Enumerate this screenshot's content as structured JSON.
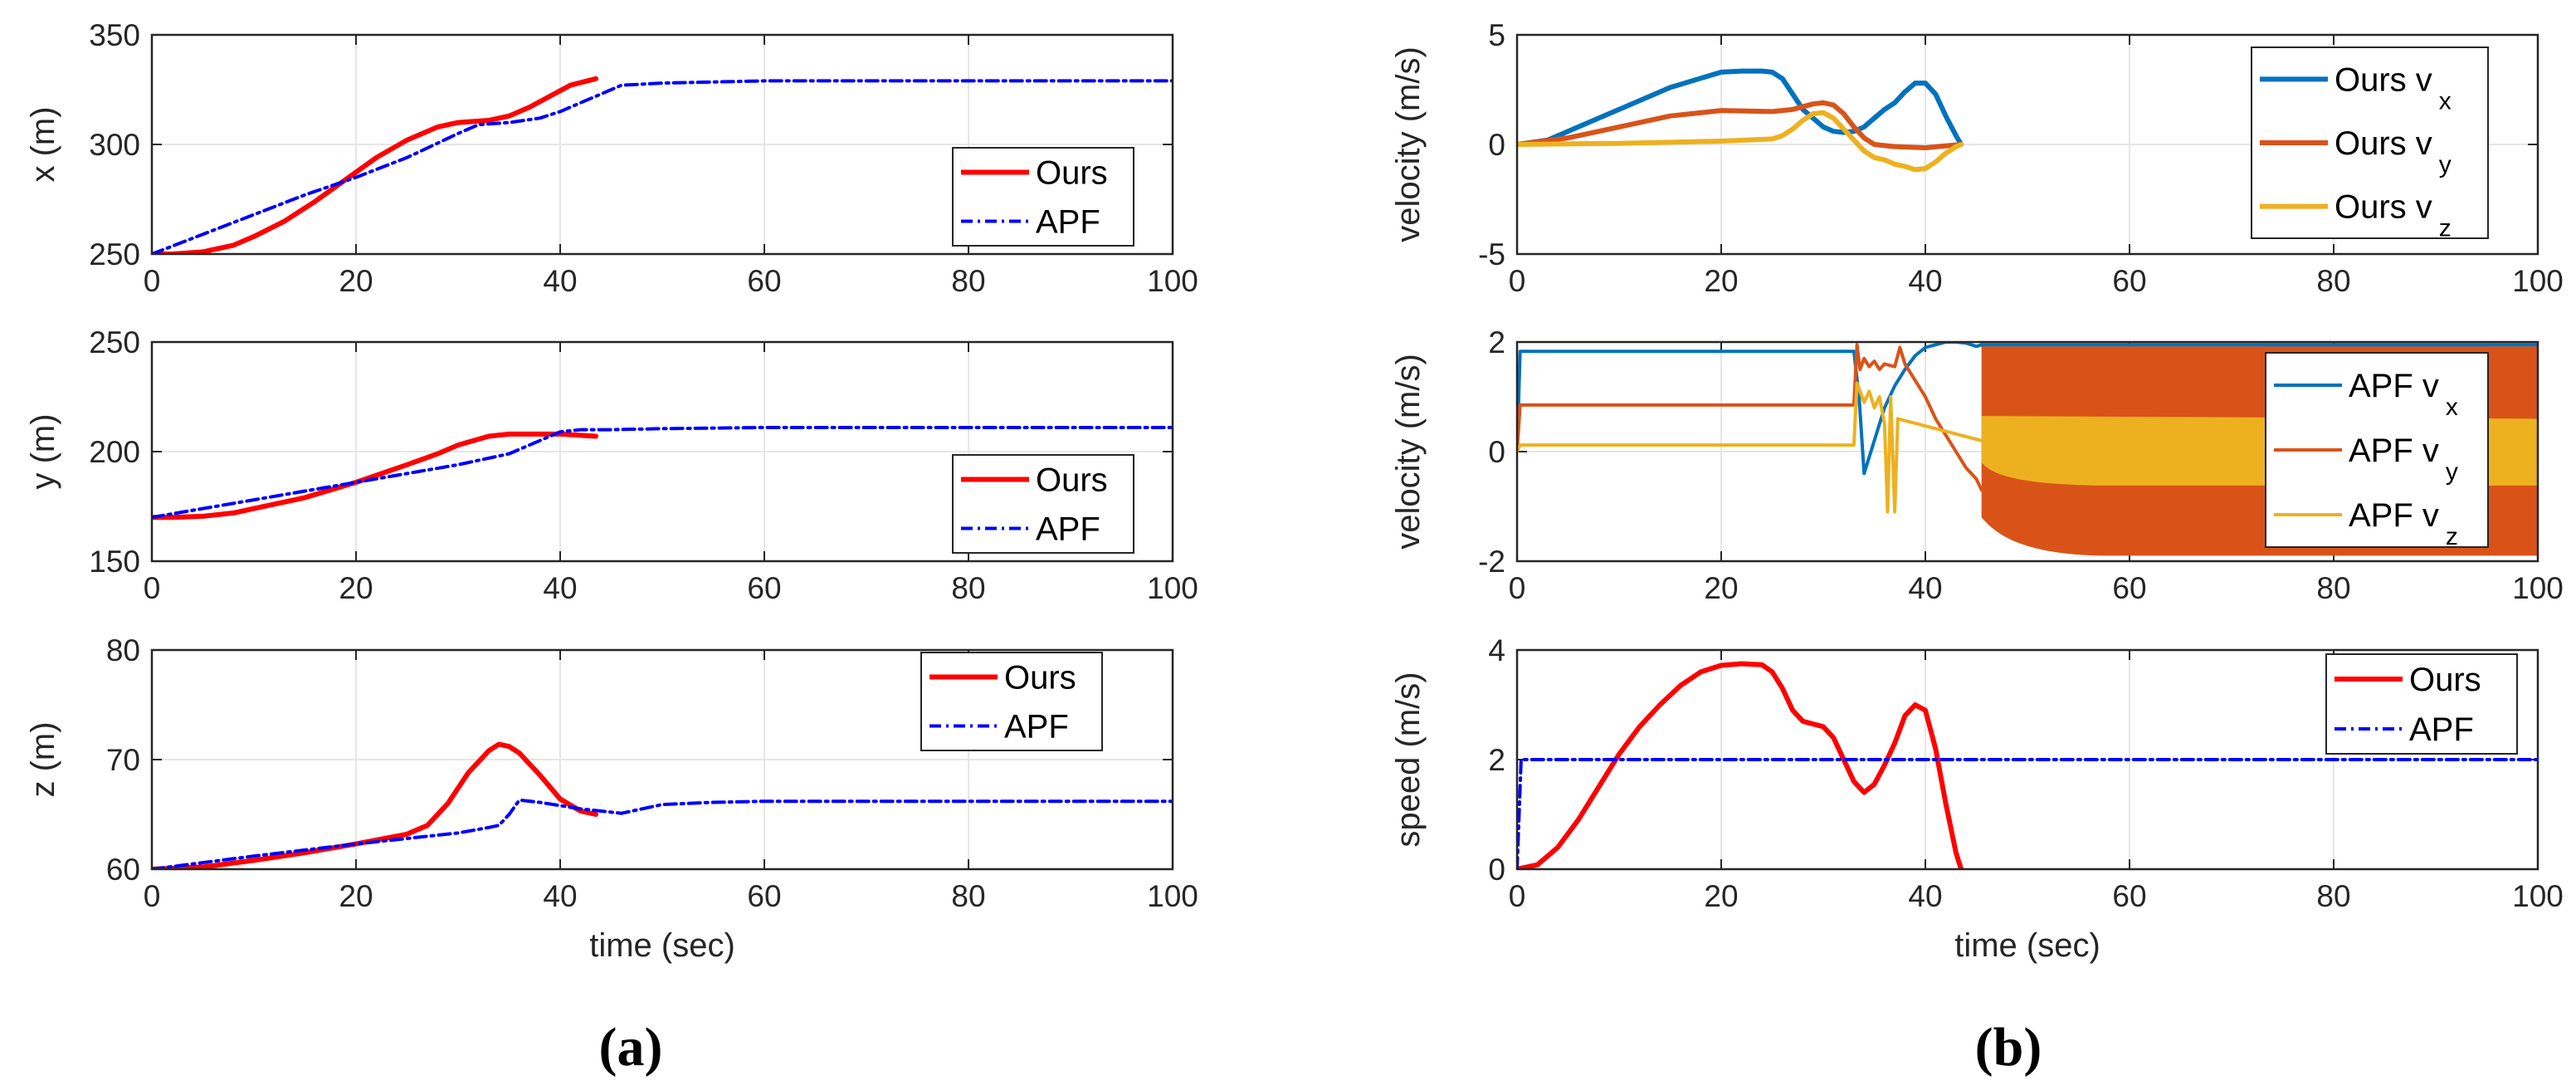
{
  "panel_labels": [
    "(a)",
    "(b)"
  ],
  "colors": {
    "ours_red": "#ff0000",
    "apf_blue": "#0000ff",
    "vx": "#0072bd",
    "vy": "#d95319",
    "vz": "#edb120",
    "grid": "#e6e6e6",
    "axis": "#262626"
  },
  "chart_data": [
    {
      "id": "x",
      "type": "line",
      "title": "",
      "xlabel": "",
      "ylabel": "x (m)",
      "xlim": [
        0,
        100
      ],
      "ylim": [
        250,
        350
      ],
      "xticks": [
        0,
        20,
        40,
        60,
        80,
        100
      ],
      "yticks": [
        250,
        300,
        350
      ],
      "grid": true,
      "legend_position": "bottom-right",
      "series": [
        {
          "name": "Ours",
          "style": "solid-thick",
          "color": "#ff0000",
          "x": [
            0,
            2,
            5,
            8,
            10,
            13,
            16,
            19,
            22,
            25,
            28,
            30,
            33,
            35,
            37,
            39,
            41,
            43.5
          ],
          "y": [
            250,
            250,
            251,
            254,
            258,
            265,
            274,
            284,
            294,
            302,
            308,
            310,
            311,
            313,
            317,
            322,
            327,
            330
          ]
        },
        {
          "name": "APF",
          "style": "dashdot",
          "color": "#0000ff",
          "x": [
            0,
            5,
            10,
            15,
            20,
            25,
            30,
            32,
            35,
            38,
            40,
            42,
            44,
            46,
            50,
            60,
            80,
            100
          ],
          "y": [
            250,
            259,
            268,
            277,
            285,
            294,
            305,
            309,
            310,
            312,
            315,
            319,
            323,
            327,
            328,
            329,
            329,
            329
          ]
        }
      ]
    },
    {
      "id": "y",
      "type": "line",
      "title": "",
      "xlabel": "",
      "ylabel": "y (m)",
      "xlim": [
        0,
        100
      ],
      "ylim": [
        150,
        250
      ],
      "xticks": [
        0,
        20,
        40,
        60,
        80,
        100
      ],
      "yticks": [
        150,
        200,
        250
      ],
      "grid": true,
      "legend_position": "bottom-right",
      "series": [
        {
          "name": "Ours",
          "style": "solid-thick",
          "color": "#ff0000",
          "x": [
            0,
            2,
            5,
            8,
            10,
            15,
            20,
            25,
            28,
            30,
            33,
            35,
            38,
            40,
            43.5
          ],
          "y": [
            170,
            170,
            170.5,
            172,
            174,
            179,
            186,
            194,
            199,
            203,
            207,
            208,
            208,
            208,
            207
          ]
        },
        {
          "name": "APF",
          "style": "dashdot",
          "color": "#0000ff",
          "x": [
            0,
            5,
            10,
            15,
            20,
            25,
            30,
            35,
            38,
            40,
            42,
            45,
            50,
            60,
            80,
            100
          ],
          "y": [
            170,
            174,
            178,
            182,
            186,
            190,
            194,
            199,
            205,
            209,
            210,
            210,
            210.5,
            211,
            211,
            211
          ]
        }
      ]
    },
    {
      "id": "z",
      "type": "line",
      "title": "",
      "xlabel": "time (sec)",
      "ylabel": "z (m)",
      "xlim": [
        0,
        100
      ],
      "ylim": [
        60,
        80
      ],
      "xticks": [
        0,
        20,
        40,
        60,
        80,
        100
      ],
      "yticks": [
        60,
        70,
        80
      ],
      "grid": true,
      "legend_position": "top-right",
      "series": [
        {
          "name": "Ours",
          "style": "solid-thick",
          "color": "#ff0000",
          "x": [
            0,
            5,
            10,
            15,
            20,
            25,
            27,
            29,
            31,
            33,
            34,
            35,
            36,
            38,
            40,
            42,
            43.5
          ],
          "y": [
            60,
            60.2,
            60.8,
            61.5,
            62.3,
            63.2,
            64,
            66,
            68.8,
            70.8,
            71.4,
            71.2,
            70.6,
            68.6,
            66.4,
            65.3,
            65
          ]
        },
        {
          "name": "APF",
          "style": "dashdot",
          "color": "#0000ff",
          "x": [
            0,
            10,
            20,
            25,
            30,
            33,
            34,
            35,
            36,
            38,
            40,
            42,
            44,
            46,
            48,
            50,
            55,
            60,
            80,
            100
          ],
          "y": [
            60,
            61.2,
            62.3,
            62.8,
            63.3,
            63.8,
            64,
            65,
            66.3,
            66.1,
            65.8,
            65.5,
            65.3,
            65.1,
            65.5,
            65.9,
            66.1,
            66.2,
            66.2,
            66.2
          ]
        }
      ]
    },
    {
      "id": "v_ours",
      "type": "line",
      "title": "",
      "xlabel": "",
      "ylabel": "velocity (m/s)",
      "xlim": [
        0,
        100
      ],
      "ylim": [
        -5,
        5
      ],
      "xticks": [
        0,
        20,
        40,
        60,
        80,
        100
      ],
      "yticks": [
        -5,
        0,
        5
      ],
      "grid": true,
      "legend_position": "top-right",
      "series": [
        {
          "name": "Ours v",
          "subscript": "x",
          "style": "solid-thick",
          "color": "#0072bd",
          "x": [
            0,
            3,
            6,
            10,
            15,
            20,
            22,
            24,
            25,
            26,
            27,
            28,
            30,
            31,
            32,
            33,
            34,
            35,
            36,
            37,
            38,
            39,
            40,
            41,
            42,
            43,
            43.5
          ],
          "y": [
            0,
            0.2,
            0.8,
            1.6,
            2.6,
            3.3,
            3.35,
            3.35,
            3.3,
            3,
            2.3,
            1.6,
            0.8,
            0.6,
            0.55,
            0.6,
            0.8,
            1.2,
            1.6,
            1.9,
            2.4,
            2.8,
            2.8,
            2.3,
            1.3,
            0.4,
            0
          ]
        },
        {
          "name": "Ours v",
          "subscript": "y",
          "style": "solid-thick",
          "color": "#d95319",
          "x": [
            0,
            5,
            10,
            15,
            20,
            25,
            27,
            29,
            30,
            31,
            32,
            33,
            34,
            35,
            37,
            40,
            43.5
          ],
          "y": [
            0,
            0.3,
            0.8,
            1.3,
            1.55,
            1.5,
            1.6,
            1.85,
            1.9,
            1.8,
            1.4,
            0.8,
            0.3,
            0,
            -0.1,
            -0.15,
            0
          ]
        },
        {
          "name": "Ours v",
          "subscript": "z",
          "style": "solid-thick",
          "color": "#edb120",
          "x": [
            0,
            10,
            20,
            25,
            26,
            27,
            28,
            29,
            30,
            31,
            32,
            33,
            34,
            35,
            36,
            37,
            38,
            39,
            40,
            41,
            42,
            43,
            43.5
          ],
          "y": [
            0,
            0.05,
            0.15,
            0.25,
            0.4,
            0.7,
            1.1,
            1.4,
            1.45,
            1.2,
            0.7,
            0.2,
            -0.3,
            -0.6,
            -0.7,
            -0.9,
            -1,
            -1.15,
            -1.1,
            -0.8,
            -0.4,
            -0.1,
            0
          ]
        }
      ]
    },
    {
      "id": "v_apf",
      "type": "line",
      "title": "",
      "xlabel": "",
      "ylabel": "velocity (m/s)",
      "xlim": [
        0,
        100
      ],
      "ylim": [
        -2,
        2
      ],
      "xticks": [
        0,
        20,
        40,
        60,
        80,
        100
      ],
      "yticks": [
        -2,
        0,
        2
      ],
      "grid": true,
      "legend_position": "top-right",
      "oscillation_band_from_x": 45.5,
      "series": [
        {
          "name": "APF v",
          "subscript": "x",
          "style": "solid",
          "color": "#0072bd",
          "x": [
            0,
            0.3,
            33,
            33.5,
            34,
            35,
            36,
            37,
            38,
            39,
            40,
            41,
            42,
            43,
            44,
            45,
            45.5,
            45.5,
            100
          ],
          "y": [
            0,
            1.83,
            1.83,
            1.0,
            -0.4,
            0.2,
            0.8,
            1.2,
            1.5,
            1.75,
            1.9,
            1.95,
            2.0,
            2.0,
            1.98,
            1.92,
            1.95,
            1.95,
            1.95
          ]
        },
        {
          "name": "APF v",
          "subscript": "y",
          "style": "solid",
          "color": "#d95319",
          "x": [
            0,
            0.3,
            33,
            33.3,
            33.6,
            34,
            34.5,
            35,
            35.5,
            36,
            37,
            37.5,
            38,
            39,
            40,
            41,
            42,
            43,
            44,
            45,
            45.5
          ],
          "y": [
            0,
            0.85,
            0.85,
            1.95,
            1.5,
            1.7,
            1.55,
            1.65,
            1.5,
            1.6,
            1.55,
            1.9,
            1.6,
            1.3,
            1.0,
            0.6,
            0.3,
            0,
            -0.3,
            -0.5,
            -0.7
          ],
          "band": {
            "x_start": 45.5,
            "x_end": 100,
            "high_start": 1.95,
            "low_start": -1.2,
            "high_end": 1.95,
            "low_end": -1.9
          }
        },
        {
          "name": "APF v",
          "subscript": "z",
          "style": "solid",
          "color": "#edb120",
          "x": [
            0,
            0.3,
            33,
            33.3,
            34,
            34.5,
            35,
            35.5,
            36,
            36.3,
            36.6,
            37,
            37.3,
            45.5
          ],
          "y": [
            0,
            0.12,
            0.12,
            1.25,
            0.9,
            1.1,
            0.8,
            1.0,
            0.5,
            -1.1,
            1.0,
            -1.1,
            0.6,
            0.2
          ],
          "band": {
            "x_start": 45.5,
            "x_end": 100,
            "high_start": 0.65,
            "low_start": -0.2,
            "high_end": 0.6,
            "low_end": -0.62
          }
        }
      ]
    },
    {
      "id": "speed",
      "type": "line",
      "title": "",
      "xlabel": "time (sec)",
      "ylabel": "speed (m/s)",
      "xlim": [
        0,
        100
      ],
      "ylim": [
        0,
        4
      ],
      "xticks": [
        0,
        20,
        40,
        60,
        80,
        100
      ],
      "yticks": [
        0,
        2,
        4
      ],
      "grid": true,
      "legend_position": "top-right",
      "series": [
        {
          "name": "Ours",
          "style": "solid-thick",
          "color": "#ff0000",
          "x": [
            0,
            2,
            4,
            6,
            8,
            10,
            12,
            14,
            16,
            18,
            20,
            22,
            24,
            25,
            26,
            27,
            28,
            29,
            30,
            31,
            32,
            33,
            34,
            35,
            36,
            37,
            38,
            39,
            40,
            41,
            42,
            43,
            43.5
          ],
          "y": [
            0,
            0.08,
            0.4,
            0.9,
            1.5,
            2.1,
            2.6,
            3.0,
            3.35,
            3.6,
            3.72,
            3.75,
            3.73,
            3.6,
            3.3,
            2.9,
            2.7,
            2.65,
            2.6,
            2.4,
            2.0,
            1.6,
            1.4,
            1.55,
            1.9,
            2.3,
            2.8,
            3.0,
            2.9,
            2.2,
            1.2,
            0.3,
            0
          ]
        },
        {
          "name": "APF",
          "style": "dashdot",
          "color": "#0000ff",
          "x": [
            0,
            0.4,
            100
          ],
          "y": [
            0,
            2.0,
            2.0
          ]
        }
      ]
    }
  ]
}
